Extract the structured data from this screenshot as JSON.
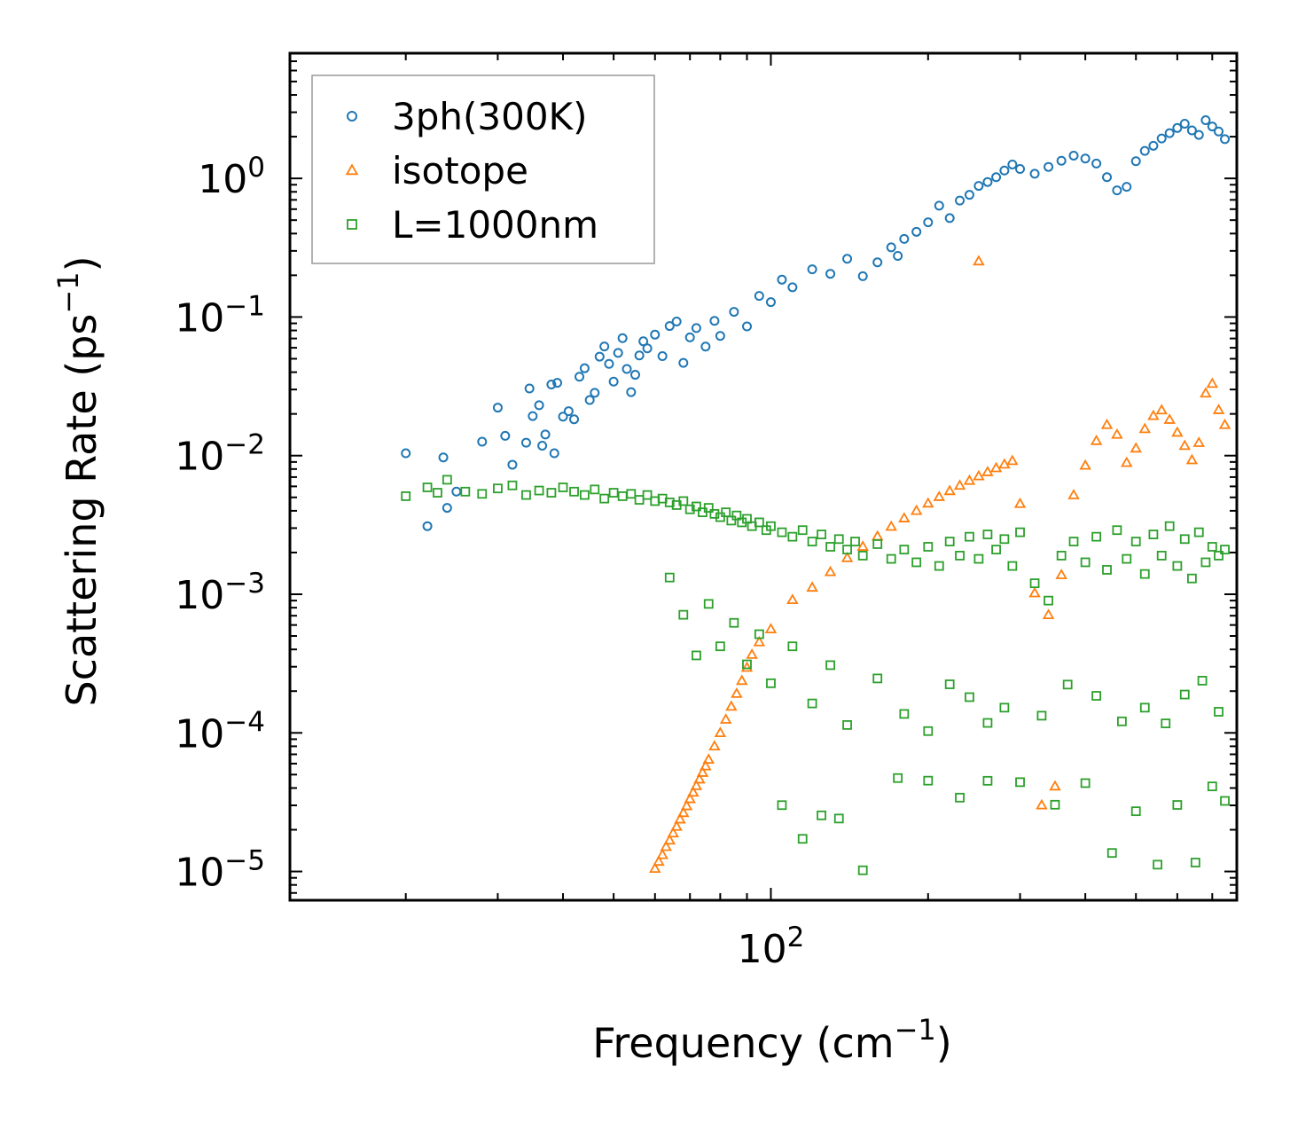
{
  "chart_data": {
    "type": "scatter",
    "title": "",
    "xlabel": "Frequency (cm",
    "xlabel_sup": "−1",
    "xlabel_end": ")",
    "ylabel": "Scattering Rate (ps",
    "ylabel_sup": "−1",
    "ylabel_end": ")",
    "xscale": "log",
    "yscale": "log",
    "xlim": [
      12,
      780
    ],
    "ylim": [
      6.2e-06,
      8
    ],
    "grid": false,
    "legend_position": "top-left",
    "xticks": [
      {
        "base": "10",
        "exp": "2",
        "value": 100
      }
    ],
    "yticks": [
      {
        "base": "10",
        "exp": "0",
        "value": 1
      },
      {
        "base": "10",
        "exp": "−1",
        "value": 0.1
      },
      {
        "base": "10",
        "exp": "−2",
        "value": 0.01
      },
      {
        "base": "10",
        "exp": "−3",
        "value": 0.001
      },
      {
        "base": "10",
        "exp": "−4",
        "value": 0.0001
      },
      {
        "base": "10",
        "exp": "−5",
        "value": 1e-05
      }
    ],
    "series": [
      {
        "name": "3ph(300K)",
        "color": "#1f77b4",
        "marker": "circle",
        "x": [
          20,
          22,
          23.6,
          24,
          25,
          28,
          30,
          31,
          32,
          34,
          34.5,
          35,
          36,
          36.5,
          37,
          38,
          38.5,
          39,
          40,
          41,
          42,
          43,
          44,
          45,
          46,
          47,
          48,
          49,
          50,
          51,
          52,
          53,
          54,
          55,
          56,
          57,
          58,
          60,
          62,
          64,
          66,
          68,
          70,
          72,
          75,
          78,
          80,
          85,
          90,
          95,
          100,
          105,
          110,
          120,
          130,
          140,
          150,
          160,
          170,
          175,
          180,
          190,
          200,
          210,
          220,
          230,
          240,
          250,
          260,
          270,
          280,
          290,
          300,
          320,
          340,
          360,
          380,
          400,
          420,
          440,
          460,
          480,
          500,
          520,
          540,
          560,
          580,
          600,
          620,
          640,
          660,
          680,
          700,
          720,
          740
        ],
        "y": [
          0.0104,
          0.0031,
          0.0097,
          0.0042,
          0.0055,
          0.0126,
          0.0222,
          0.0139,
          0.0086,
          0.0124,
          0.0305,
          0.0193,
          0.0231,
          0.0118,
          0.0142,
          0.0326,
          0.0104,
          0.0335,
          0.0191,
          0.0209,
          0.0183,
          0.0371,
          0.0427,
          0.0252,
          0.0284,
          0.0518,
          0.0613,
          0.0459,
          0.0342,
          0.0551,
          0.0704,
          0.0422,
          0.0287,
          0.0383,
          0.0528,
          0.0668,
          0.0594,
          0.0746,
          0.0522,
          0.0861,
          0.0928,
          0.0467,
          0.0713,
          0.0832,
          0.0612,
          0.0938,
          0.0731,
          0.109,
          0.0856,
          0.142,
          0.128,
          0.186,
          0.164,
          0.221,
          0.205,
          0.263,
          0.197,
          0.248,
          0.318,
          0.276,
          0.366,
          0.412,
          0.482,
          0.636,
          0.517,
          0.692,
          0.761,
          0.883,
          0.942,
          1.02,
          1.14,
          1.26,
          1.17,
          1.08,
          1.21,
          1.34,
          1.46,
          1.39,
          1.28,
          1.02,
          0.82,
          0.87,
          1.33,
          1.58,
          1.72,
          1.94,
          2.12,
          2.31,
          2.48,
          2.22,
          2.06,
          2.63,
          2.37,
          2.18,
          1.92
        ]
      },
      {
        "name": "isotope",
        "color": "#ff7f0e",
        "marker": "triangle",
        "x": [
          60,
          61,
          62,
          63,
          64,
          65,
          66,
          67,
          68,
          69,
          70,
          71,
          72,
          73,
          74,
          75,
          76,
          78,
          80,
          82,
          84,
          86,
          88,
          90,
          92,
          95,
          100,
          110,
          120,
          130,
          140,
          150,
          160,
          170,
          180,
          190,
          200,
          210,
          220,
          230,
          240,
          250,
          260,
          270,
          280,
          290,
          300,
          320,
          340,
          360,
          380,
          400,
          420,
          440,
          460,
          480,
          500,
          520,
          540,
          560,
          580,
          600,
          620,
          640,
          660,
          680,
          700,
          720,
          740,
          330,
          350,
          250
        ],
        "y": [
          1.05e-05,
          1.18e-05,
          1.32e-05,
          1.51e-05,
          1.68e-05,
          1.89e-05,
          2.11e-05,
          2.38e-05,
          2.65e-05,
          2.97e-05,
          3.34e-05,
          3.72e-05,
          4.15e-05,
          4.63e-05,
          5.17e-05,
          5.76e-05,
          6.43e-05,
          8.02e-05,
          0.0001,
          0.000125,
          0.000155,
          0.000192,
          0.000238,
          0.000296,
          0.000367,
          0.000452,
          0.000561,
          0.000912,
          0.00112,
          0.00145,
          0.00183,
          0.00221,
          0.00262,
          0.00308,
          0.00354,
          0.00401,
          0.00453,
          0.00505,
          0.00557,
          0.00609,
          0.00661,
          0.00712,
          0.00763,
          0.00815,
          0.00866,
          0.00918,
          0.0045,
          0.00102,
          0.00071,
          0.00138,
          0.0052,
          0.0085,
          0.0128,
          0.0167,
          0.0142,
          0.0089,
          0.0113,
          0.0156,
          0.0194,
          0.0213,
          0.0182,
          0.0147,
          0.0118,
          0.0093,
          0.0124,
          0.0282,
          0.0331,
          0.0214,
          0.0167,
          3.01e-05,
          4.12e-05,
          0.253
        ]
      },
      {
        "name": "L=1000nm",
        "color": "#2ca02c",
        "marker": "square",
        "x": [
          20,
          22,
          23,
          24,
          26,
          28,
          30,
          32,
          34,
          36,
          38,
          40,
          42,
          44,
          46,
          48,
          50,
          52,
          54,
          56,
          58,
          60,
          62,
          64,
          66,
          68,
          70,
          72,
          74,
          76,
          78,
          80,
          82,
          84,
          86,
          88,
          90,
          92,
          95,
          98,
          100,
          105,
          110,
          115,
          120,
          125,
          130,
          135,
          140,
          145,
          150,
          160,
          170,
          180,
          190,
          200,
          210,
          220,
          230,
          240,
          250,
          260,
          270,
          280,
          290,
          300,
          320,
          340,
          360,
          380,
          400,
          420,
          440,
          460,
          480,
          500,
          520,
          540,
          560,
          580,
          600,
          620,
          640,
          660,
          680,
          700,
          720,
          740,
          105,
          115,
          125,
          135,
          150,
          175,
          200,
          230,
          260,
          300,
          350,
          400,
          450,
          500,
          550,
          600,
          650,
          700,
          740,
          64,
          68,
          72,
          76,
          80,
          85,
          90,
          95,
          100,
          110,
          120,
          130,
          140,
          160,
          180,
          200,
          220,
          240,
          260,
          280,
          330,
          370,
          420,
          470,
          520,
          570,
          620,
          670,
          720
        ],
        "y": [
          0.0051,
          0.0059,
          0.0054,
          0.0067,
          0.0055,
          0.0053,
          0.0058,
          0.0061,
          0.0052,
          0.0056,
          0.0054,
          0.0059,
          0.0055,
          0.0052,
          0.0057,
          0.0049,
          0.0054,
          0.0051,
          0.0053,
          0.0048,
          0.0052,
          0.0047,
          0.0049,
          0.0046,
          0.0044,
          0.0047,
          0.0041,
          0.0043,
          0.0039,
          0.0042,
          0.0038,
          0.0036,
          0.0039,
          0.0034,
          0.0037,
          0.0033,
          0.0035,
          0.0031,
          0.0033,
          0.0029,
          0.0031,
          0.0028,
          0.0026,
          0.0029,
          0.0024,
          0.0027,
          0.0022,
          0.0025,
          0.0021,
          0.0024,
          0.0019,
          0.0023,
          0.0018,
          0.0021,
          0.0017,
          0.0022,
          0.0016,
          0.0024,
          0.0019,
          0.0026,
          0.0018,
          0.0027,
          0.0021,
          0.0025,
          0.0016,
          0.0028,
          0.0012,
          0.0009,
          0.0019,
          0.0024,
          0.0017,
          0.0026,
          0.0015,
          0.0029,
          0.0018,
          0.0024,
          0.0014,
          0.0027,
          0.0019,
          0.0031,
          0.0016,
          0.0025,
          0.0013,
          0.0028,
          0.0017,
          0.0022,
          0.0019,
          0.0021,
          3.01e-05,
          1.72e-05,
          2.54e-05,
          2.41e-05,
          1.02e-05,
          4.72e-05,
          4.52e-05,
          3.41e-05,
          4.51e-05,
          4.41e-05,
          3.03e-05,
          4.34e-05,
          1.36e-05,
          2.72e-05,
          1.12e-05,
          3.02e-05,
          1.16e-05,
          4.11e-05,
          3.23e-05,
          0.00132,
          0.000711,
          0.000362,
          0.000852,
          0.000421,
          0.000622,
          0.000312,
          0.000515,
          0.000228,
          0.000421,
          0.000163,
          0.000308,
          0.000114,
          0.000247,
          0.000137,
          0.000103,
          0.000224,
          0.000181,
          0.000118,
          0.000152,
          0.000133,
          0.000223,
          0.000185,
          0.000121,
          0.000152,
          0.000117,
          0.000189,
          0.000238,
          0.000142
        ]
      }
    ]
  }
}
